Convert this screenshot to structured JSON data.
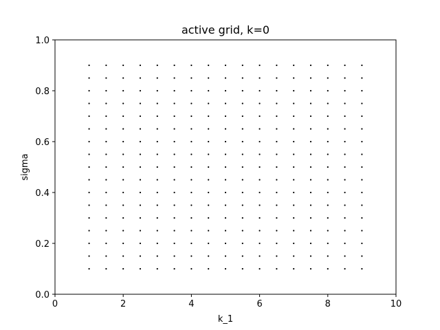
{
  "chart_data": {
    "type": "scatter",
    "title": "active grid, k=0",
    "xlabel": "k_1",
    "ylabel": "sigma",
    "xlim": [
      0,
      10
    ],
    "ylim": [
      0,
      1
    ],
    "grid": false,
    "x_ticks": [
      0,
      2,
      4,
      6,
      8,
      10
    ],
    "x_tick_labels": [
      "0",
      "2",
      "4",
      "6",
      "8",
      "10"
    ],
    "y_ticks": [
      0.0,
      0.2,
      0.4,
      0.6,
      0.8,
      1.0
    ],
    "y_tick_labels": [
      "0.0",
      "0.2",
      "0.4",
      "0.6",
      "0.8",
      "1.0"
    ],
    "x_values": [
      1.0,
      1.5,
      2.0,
      2.5,
      3.0,
      3.5,
      4.0,
      4.5,
      5.0,
      5.5,
      6.0,
      6.5,
      7.0,
      7.5,
      8.0,
      8.5,
      9.0
    ],
    "y_values": [
      0.1,
      0.15,
      0.2,
      0.25,
      0.3,
      0.35,
      0.4,
      0.45,
      0.5,
      0.55,
      0.6,
      0.65,
      0.7,
      0.75,
      0.8,
      0.85,
      0.9
    ],
    "point_color": "#000000"
  }
}
